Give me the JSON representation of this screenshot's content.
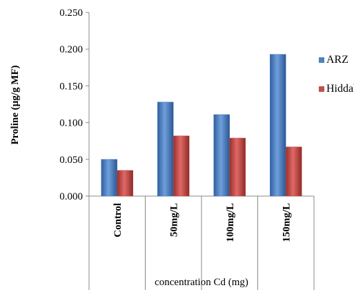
{
  "chart_data": {
    "type": "bar",
    "title": "",
    "xlabel": "concentration Cd (mg)",
    "ylabel": "Proline (µg/g MF)",
    "categories": [
      "Control",
      "50mg/L",
      "100mg/L",
      "150mg/L"
    ],
    "ylim": [
      0,
      0.25
    ],
    "yticks": [
      "0.000",
      "0.050",
      "0.100",
      "0.150",
      "0.200",
      "0.250"
    ],
    "series": [
      {
        "name": "ARZ",
        "values": [
          0.05,
          0.128,
          0.111,
          0.193
        ],
        "color": "#4f81bd"
      },
      {
        "name": "Hiddab",
        "values": [
          0.035,
          0.082,
          0.079,
          0.067
        ],
        "color": "#c0504d"
      }
    ],
    "legend": "right",
    "grid": false
  }
}
